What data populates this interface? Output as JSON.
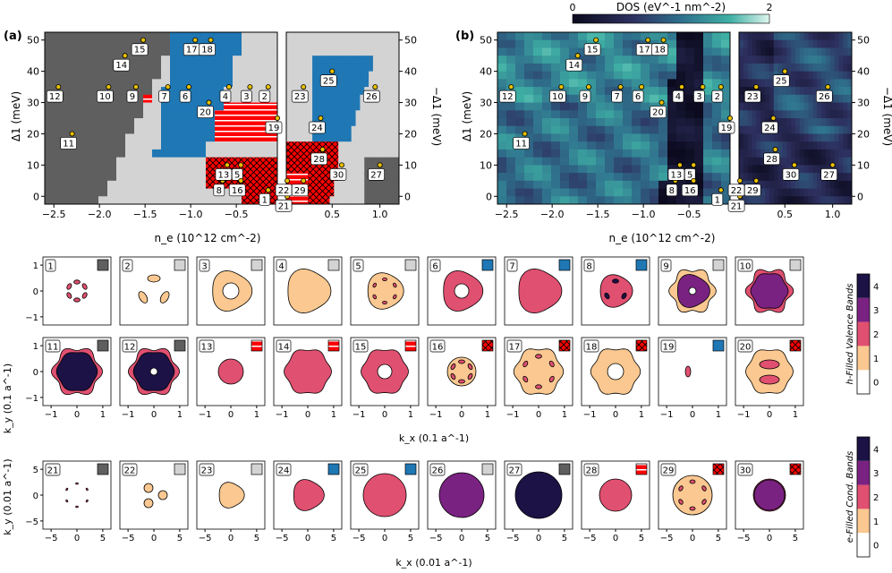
{
  "panels": {
    "a": {
      "label": "(a)",
      "xlabel": "n_e (10^12 cm^-2)",
      "ylabel_left": "Δ1 (meV)",
      "ylabel_right": "−Δ1 (meV)",
      "x_ticks": [
        "−2.5",
        "−2.0",
        "−1.5",
        "−1.0",
        "−0.5",
        "0.5",
        "1.0"
      ],
      "y_ticks": [
        "0",
        "10",
        "20",
        "30",
        "40",
        "50"
      ]
    },
    "b": {
      "label": "(b)",
      "colorbar_title": "DOS (eV^-1 nm^-2)",
      "colorbar_min": "0",
      "colorbar_max": "2",
      "xlabel": "n_e (10^12 cm^-2)",
      "ylabel_left": "Δ1 (meV)",
      "ylabel_right": "−Δ1 (meV)",
      "x_ticks": [
        "−2.5",
        "−2.0",
        "−1.5",
        "−1.0",
        "−0.5",
        "0.5",
        "1.0"
      ],
      "y_ticks": [
        "0",
        "10",
        "20",
        "30",
        "40",
        "50"
      ]
    }
  },
  "points": [
    {
      "id": "1",
      "ne": -0.15,
      "d": 2
    },
    {
      "id": "2",
      "ne": -0.15,
      "d": 35
    },
    {
      "id": "3",
      "ne": -0.35,
      "d": 35
    },
    {
      "id": "4",
      "ne": -0.58,
      "d": 35
    },
    {
      "id": "5",
      "ne": -0.45,
      "d": 10
    },
    {
      "id": "6",
      "ne": -1.02,
      "d": 35
    },
    {
      "id": "7",
      "ne": -1.25,
      "d": 35
    },
    {
      "id": "8",
      "ne": -0.65,
      "d": 5
    },
    {
      "id": "9",
      "ne": -1.6,
      "d": 35
    },
    {
      "id": "10",
      "ne": -1.9,
      "d": 35
    },
    {
      "id": "11",
      "ne": -2.3,
      "d": 20
    },
    {
      "id": "12",
      "ne": -2.45,
      "d": 35
    },
    {
      "id": "13",
      "ne": -0.6,
      "d": 10
    },
    {
      "id": "14",
      "ne": -1.72,
      "d": 45
    },
    {
      "id": "15",
      "ne": -1.52,
      "d": 50
    },
    {
      "id": "16",
      "ne": -0.45,
      "d": 5
    },
    {
      "id": "17",
      "ne": -0.95,
      "d": 50
    },
    {
      "id": "18",
      "ne": -0.78,
      "d": 50
    },
    {
      "id": "19",
      "ne": -0.05,
      "d": 25
    },
    {
      "id": "20",
      "ne": -0.8,
      "d": 30
    },
    {
      "id": "21",
      "ne": 0.03,
      "d": 0
    },
    {
      "id": "22",
      "ne": 0.03,
      "d": 5
    },
    {
      "id": "23",
      "ne": 0.2,
      "d": 35
    },
    {
      "id": "24",
      "ne": 0.38,
      "d": 25
    },
    {
      "id": "25",
      "ne": 0.5,
      "d": 40
    },
    {
      "id": "26",
      "ne": 0.95,
      "d": 35
    },
    {
      "id": "27",
      "ne": 1.0,
      "d": 10
    },
    {
      "id": "28",
      "ne": 0.4,
      "d": 15
    },
    {
      "id": "29",
      "ne": 0.2,
      "d": 5
    },
    {
      "id": "30",
      "ne": 0.6,
      "d": 10
    }
  ],
  "phase_colors": {
    "bg_dark": "#5f5f5f",
    "bg_light": "#d3d3d3",
    "blue": "#1f77b4",
    "red": "#ff0000"
  },
  "rows": {
    "valence_1": {
      "ylabel": "",
      "y_ticks": [
        "1",
        "0",
        "−1"
      ],
      "x_ticks": []
    },
    "valence_2": {
      "ylabel": "k_y (0.1 a^-1)",
      "y_ticks": [
        "1",
        "0",
        "−1"
      ],
      "x_ticks": [
        "−1",
        "0",
        "1"
      ],
      "xlabel": "k_x (0.1 a^-1)"
    },
    "conduction": {
      "ylabel": "k_y (0.01 a^-1)",
      "y_ticks": [
        "5",
        "0",
        "−5"
      ],
      "x_ticks": [
        "−5",
        "0",
        "5"
      ],
      "xlabel": "k_x (0.01 a^-1)"
    }
  },
  "small_panels": [
    {
      "id": "1",
      "ph": "dark",
      "fs": "ring6"
    },
    {
      "id": "2",
      "ph": "light",
      "fs": "tri3"
    },
    {
      "id": "3",
      "ph": "light",
      "fs": "ann1"
    },
    {
      "id": "4",
      "ph": "light",
      "fs": "solid1"
    },
    {
      "id": "5",
      "ph": "light",
      "fs": "dots1"
    },
    {
      "id": "6",
      "ph": "blue",
      "fs": "ann2"
    },
    {
      "id": "7",
      "ph": "blue",
      "fs": "solid2"
    },
    {
      "id": "8",
      "ph": "blue",
      "fs": "dots2"
    },
    {
      "id": "9",
      "ph": "light",
      "fs": "star3"
    },
    {
      "id": "10",
      "ph": "light",
      "fs": "star3b"
    },
    {
      "id": "11",
      "ph": "dark",
      "fs": "star4"
    },
    {
      "id": "12",
      "ph": "dark",
      "fs": "star4h"
    },
    {
      "id": "13",
      "ph": "stripe",
      "fs": "disk2"
    },
    {
      "id": "14",
      "ph": "stripe",
      "fs": "hex2"
    },
    {
      "id": "15",
      "ph": "stripe",
      "fs": "hex2h"
    },
    {
      "id": "16",
      "ph": "cross",
      "fs": "dots16"
    },
    {
      "id": "17",
      "ph": "cross",
      "fs": "hex1dots"
    },
    {
      "id": "18",
      "ph": "cross",
      "fs": "hex1h"
    },
    {
      "id": "19",
      "ph": "blue",
      "fs": "half"
    },
    {
      "id": "20",
      "ph": "cross",
      "fs": "moon"
    },
    {
      "id": "21",
      "ph": "dark",
      "fs": "tiny6"
    },
    {
      "id": "22",
      "ph": "light",
      "fs": "tri3c"
    },
    {
      "id": "23",
      "ph": "light",
      "fs": "solid1c"
    },
    {
      "id": "24",
      "ph": "blue",
      "fs": "solid2c"
    },
    {
      "id": "25",
      "ph": "blue",
      "fs": "big2"
    },
    {
      "id": "26",
      "ph": "light",
      "fs": "big3"
    },
    {
      "id": "27",
      "ph": "dark",
      "fs": "big4"
    },
    {
      "id": "28",
      "ph": "stripe",
      "fs": "mid2"
    },
    {
      "id": "29",
      "ph": "cross",
      "fs": "mid1dots"
    },
    {
      "id": "30",
      "ph": "cross",
      "fs": "mid3"
    }
  ],
  "band_colors": [
    "#ffffff",
    "#fac890",
    "#e05070",
    "#7a2282",
    "#1c1245"
  ],
  "colorbar_valence": {
    "title": "h-Filled Valence Bands",
    "ticks": [
      "0",
      "1",
      "2",
      "3",
      "4"
    ]
  },
  "colorbar_conduction": {
    "title": "e-Filled Cond. Bands",
    "ticks": [
      "0",
      "1",
      "2",
      "3",
      "4"
    ]
  }
}
